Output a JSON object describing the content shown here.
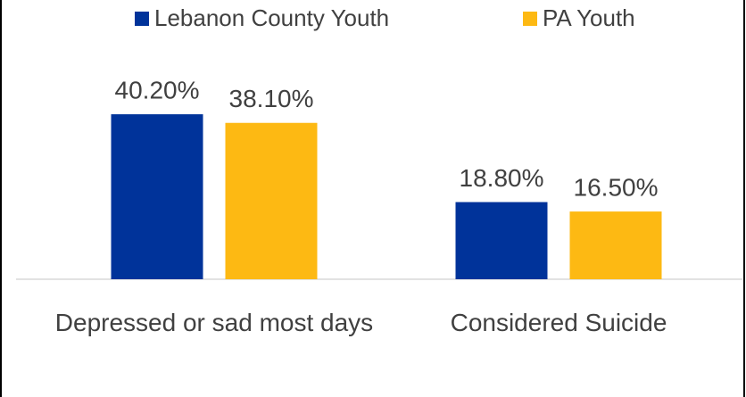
{
  "chart_data": {
    "type": "bar",
    "categories": [
      "Depressed or sad most days",
      "Considered Suicide"
    ],
    "series": [
      {
        "name": "Lebanon County Youth",
        "color": "#00339a",
        "values": [
          40.2,
          18.8
        ],
        "value_labels": [
          "40.20%",
          "18.80%"
        ]
      },
      {
        "name": "PA Youth",
        "color": "#fdb913",
        "values": [
          38.1,
          16.5
        ],
        "value_labels": [
          "38.10%",
          "16.50%"
        ]
      }
    ],
    "legend": "top"
  }
}
